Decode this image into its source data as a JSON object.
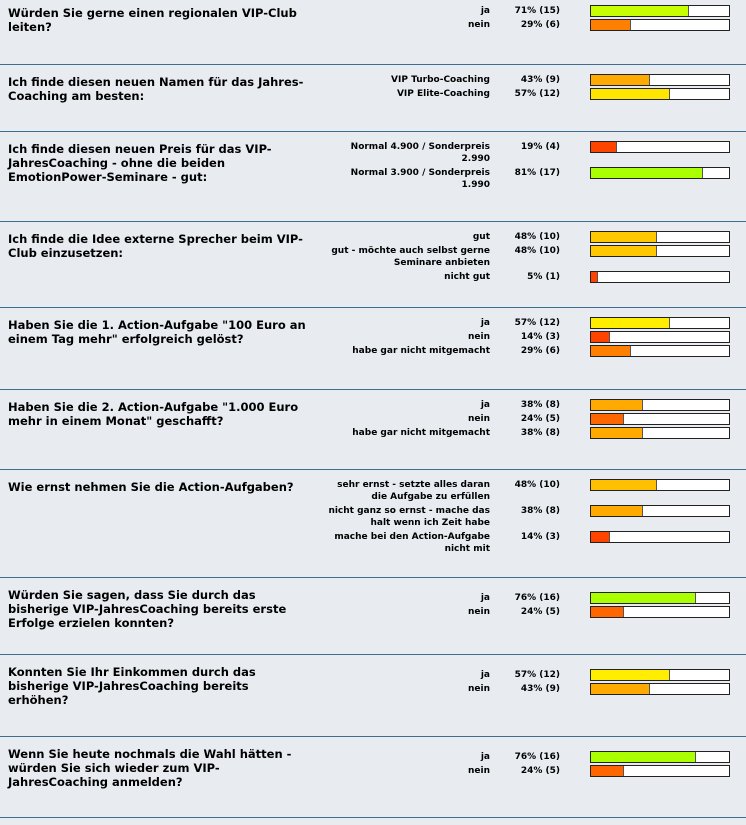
{
  "polls": [
    {
      "question": "Würden Sie gerne einen regionalen VIP-Club leiten?",
      "options": [
        {
          "label": "ja",
          "result": "71% (15)",
          "percent": 71,
          "color": "#c6ff00"
        },
        {
          "label": "nein",
          "result": "29% (6)",
          "percent": 29,
          "color": "#ff8000"
        }
      ]
    },
    {
      "question": "Ich finde diesen neuen Namen für das Jahres-Coaching am besten:",
      "options": [
        {
          "label": "VIP Turbo-Coaching",
          "result": "43% (9)",
          "percent": 43,
          "color": "#ffaa00"
        },
        {
          "label": "VIP Elite-Coaching",
          "result": "57% (12)",
          "percent": 57,
          "color": "#ffe600"
        }
      ]
    },
    {
      "question": "Ich finde diesen neuen Preis für das VIP-JahresCoaching - ohne die beiden EmotionPower-Seminare - gut:",
      "options": [
        {
          "label": "Normal 4.900 / Sonderpreis 2.990",
          "result": "19% (4)",
          "percent": 19,
          "color": "#ff4400"
        },
        {
          "label": "Normal 3.900 / Sonderpreis 1.990",
          "result": "81% (17)",
          "percent": 81,
          "color": "#aaff00"
        }
      ]
    },
    {
      "question": "Ich finde die Idee externe Sprecher beim VIP-Club einzusetzen:",
      "options": [
        {
          "label": "gut",
          "result": "48% (10)",
          "percent": 48,
          "color": "#ffc800"
        },
        {
          "label": "gut - möchte auch selbst gerne Seminare anbieten",
          "result": "48% (10)",
          "percent": 48,
          "color": "#ffc800"
        },
        {
          "label": "nicht gut",
          "result": "5% (1)",
          "percent": 5,
          "color": "#ff4400"
        }
      ]
    },
    {
      "question": "Haben Sie die 1. Action-Aufgabe \"100 Euro an einem Tag mehr\" erfolgreich gelöst?",
      "options": [
        {
          "label": "ja",
          "result": "57% (12)",
          "percent": 57,
          "color": "#ffee00"
        },
        {
          "label": "nein",
          "result": "14% (3)",
          "percent": 14,
          "color": "#ff4400"
        },
        {
          "label": "habe gar nicht mitgemacht",
          "result": "29% (6)",
          "percent": 29,
          "color": "#ff8000"
        }
      ]
    },
    {
      "question": "Haben Sie die 2. Action-Aufgabe \"1.000 Euro mehr in einem Monat\" geschafft?",
      "options": [
        {
          "label": "ja",
          "result": "38% (8)",
          "percent": 38,
          "color": "#ffaa00"
        },
        {
          "label": "nein",
          "result": "24% (5)",
          "percent": 24,
          "color": "#ff6600"
        },
        {
          "label": "habe gar nicht mitgemacht",
          "result": "38% (8)",
          "percent": 38,
          "color": "#ffaa00"
        }
      ]
    },
    {
      "question": "Wie ernst nehmen Sie die Action-Aufgaben?",
      "options": [
        {
          "label": "sehr ernst - setzte alles daran die Aufgabe zu erfüllen",
          "result": "48% (10)",
          "percent": 48,
          "color": "#ffc000"
        },
        {
          "label": "nicht ganz so ernst - mache das halt wenn ich Zeit habe",
          "result": "38% (8)",
          "percent": 38,
          "color": "#ffaa00"
        },
        {
          "label": "mache bei den Action-Aufgabe nicht mit",
          "result": "14% (3)",
          "percent": 14,
          "color": "#ff4400"
        }
      ]
    },
    {
      "question": "Würden Sie sagen, dass Sie durch das bisherige VIP-JahresCoaching bereits erste Erfolge erzielen konnten?",
      "options": [
        {
          "label": "ja",
          "result": "76% (16)",
          "percent": 76,
          "color": "#aaff00"
        },
        {
          "label": "nein",
          "result": "24% (5)",
          "percent": 24,
          "color": "#ff6600"
        }
      ]
    },
    {
      "question": "Konnten Sie Ihr Einkommen durch das bisherige VIP-JahresCoaching bereits erhöhen?",
      "options": [
        {
          "label": "ja",
          "result": "57% (12)",
          "percent": 57,
          "color": "#ffee00"
        },
        {
          "label": "nein",
          "result": "43% (9)",
          "percent": 43,
          "color": "#ffaa00"
        }
      ]
    },
    {
      "question": "Wenn Sie heute nochmals die Wahl hätten - würden Sie sich wieder zum VIP-JahresCoaching anmelden?",
      "options": [
        {
          "label": "ja",
          "result": "76% (16)",
          "percent": 76,
          "color": "#aaff00"
        },
        {
          "label": "nein",
          "result": "24% (5)",
          "percent": 24,
          "color": "#ff6600"
        }
      ]
    }
  ]
}
